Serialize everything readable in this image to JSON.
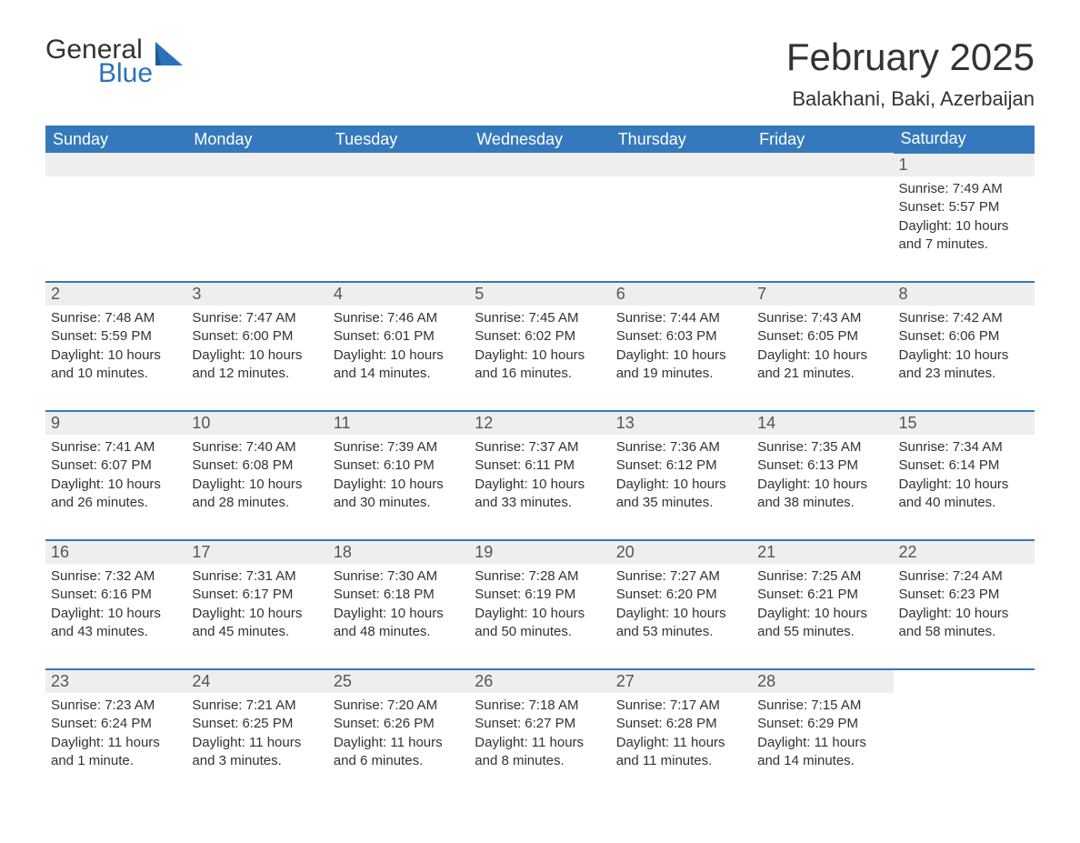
{
  "brand": {
    "word1": "General",
    "word2": "Blue",
    "word1_color": "#333333",
    "word2_color": "#2b72b9",
    "logo_color": "#2b72b9"
  },
  "title": "February 2025",
  "location": "Balakhani, Baki, Azerbaijan",
  "colors": {
    "header_bg": "#3579bd",
    "header_text": "#ffffff",
    "daynum_bg": "#eeeeee",
    "row_border": "#3579bd",
    "body_text": "#333333",
    "page_bg": "#ffffff"
  },
  "day_names": [
    "Sunday",
    "Monday",
    "Tuesday",
    "Wednesday",
    "Thursday",
    "Friday",
    "Saturday"
  ],
  "weeks": [
    [
      null,
      null,
      null,
      null,
      null,
      null,
      {
        "n": "1",
        "sr": "Sunrise: 7:49 AM",
        "ss": "Sunset: 5:57 PM",
        "dl": "Daylight: 10 hours and 7 minutes."
      }
    ],
    [
      {
        "n": "2",
        "sr": "Sunrise: 7:48 AM",
        "ss": "Sunset: 5:59 PM",
        "dl": "Daylight: 10 hours and 10 minutes."
      },
      {
        "n": "3",
        "sr": "Sunrise: 7:47 AM",
        "ss": "Sunset: 6:00 PM",
        "dl": "Daylight: 10 hours and 12 minutes."
      },
      {
        "n": "4",
        "sr": "Sunrise: 7:46 AM",
        "ss": "Sunset: 6:01 PM",
        "dl": "Daylight: 10 hours and 14 minutes."
      },
      {
        "n": "5",
        "sr": "Sunrise: 7:45 AM",
        "ss": "Sunset: 6:02 PM",
        "dl": "Daylight: 10 hours and 16 minutes."
      },
      {
        "n": "6",
        "sr": "Sunrise: 7:44 AM",
        "ss": "Sunset: 6:03 PM",
        "dl": "Daylight: 10 hours and 19 minutes."
      },
      {
        "n": "7",
        "sr": "Sunrise: 7:43 AM",
        "ss": "Sunset: 6:05 PM",
        "dl": "Daylight: 10 hours and 21 minutes."
      },
      {
        "n": "8",
        "sr": "Sunrise: 7:42 AM",
        "ss": "Sunset: 6:06 PM",
        "dl": "Daylight: 10 hours and 23 minutes."
      }
    ],
    [
      {
        "n": "9",
        "sr": "Sunrise: 7:41 AM",
        "ss": "Sunset: 6:07 PM",
        "dl": "Daylight: 10 hours and 26 minutes."
      },
      {
        "n": "10",
        "sr": "Sunrise: 7:40 AM",
        "ss": "Sunset: 6:08 PM",
        "dl": "Daylight: 10 hours and 28 minutes."
      },
      {
        "n": "11",
        "sr": "Sunrise: 7:39 AM",
        "ss": "Sunset: 6:10 PM",
        "dl": "Daylight: 10 hours and 30 minutes."
      },
      {
        "n": "12",
        "sr": "Sunrise: 7:37 AM",
        "ss": "Sunset: 6:11 PM",
        "dl": "Daylight: 10 hours and 33 minutes."
      },
      {
        "n": "13",
        "sr": "Sunrise: 7:36 AM",
        "ss": "Sunset: 6:12 PM",
        "dl": "Daylight: 10 hours and 35 minutes."
      },
      {
        "n": "14",
        "sr": "Sunrise: 7:35 AM",
        "ss": "Sunset: 6:13 PM",
        "dl": "Daylight: 10 hours and 38 minutes."
      },
      {
        "n": "15",
        "sr": "Sunrise: 7:34 AM",
        "ss": "Sunset: 6:14 PM",
        "dl": "Daylight: 10 hours and 40 minutes."
      }
    ],
    [
      {
        "n": "16",
        "sr": "Sunrise: 7:32 AM",
        "ss": "Sunset: 6:16 PM",
        "dl": "Daylight: 10 hours and 43 minutes."
      },
      {
        "n": "17",
        "sr": "Sunrise: 7:31 AM",
        "ss": "Sunset: 6:17 PM",
        "dl": "Daylight: 10 hours and 45 minutes."
      },
      {
        "n": "18",
        "sr": "Sunrise: 7:30 AM",
        "ss": "Sunset: 6:18 PM",
        "dl": "Daylight: 10 hours and 48 minutes."
      },
      {
        "n": "19",
        "sr": "Sunrise: 7:28 AM",
        "ss": "Sunset: 6:19 PM",
        "dl": "Daylight: 10 hours and 50 minutes."
      },
      {
        "n": "20",
        "sr": "Sunrise: 7:27 AM",
        "ss": "Sunset: 6:20 PM",
        "dl": "Daylight: 10 hours and 53 minutes."
      },
      {
        "n": "21",
        "sr": "Sunrise: 7:25 AM",
        "ss": "Sunset: 6:21 PM",
        "dl": "Daylight: 10 hours and 55 minutes."
      },
      {
        "n": "22",
        "sr": "Sunrise: 7:24 AM",
        "ss": "Sunset: 6:23 PM",
        "dl": "Daylight: 10 hours and 58 minutes."
      }
    ],
    [
      {
        "n": "23",
        "sr": "Sunrise: 7:23 AM",
        "ss": "Sunset: 6:24 PM",
        "dl": "Daylight: 11 hours and 1 minute."
      },
      {
        "n": "24",
        "sr": "Sunrise: 7:21 AM",
        "ss": "Sunset: 6:25 PM",
        "dl": "Daylight: 11 hours and 3 minutes."
      },
      {
        "n": "25",
        "sr": "Sunrise: 7:20 AM",
        "ss": "Sunset: 6:26 PM",
        "dl": "Daylight: 11 hours and 6 minutes."
      },
      {
        "n": "26",
        "sr": "Sunrise: 7:18 AM",
        "ss": "Sunset: 6:27 PM",
        "dl": "Daylight: 11 hours and 8 minutes."
      },
      {
        "n": "27",
        "sr": "Sunrise: 7:17 AM",
        "ss": "Sunset: 6:28 PM",
        "dl": "Daylight: 11 hours and 11 minutes."
      },
      {
        "n": "28",
        "sr": "Sunrise: 7:15 AM",
        "ss": "Sunset: 6:29 PM",
        "dl": "Daylight: 11 hours and 14 minutes."
      },
      null
    ]
  ]
}
